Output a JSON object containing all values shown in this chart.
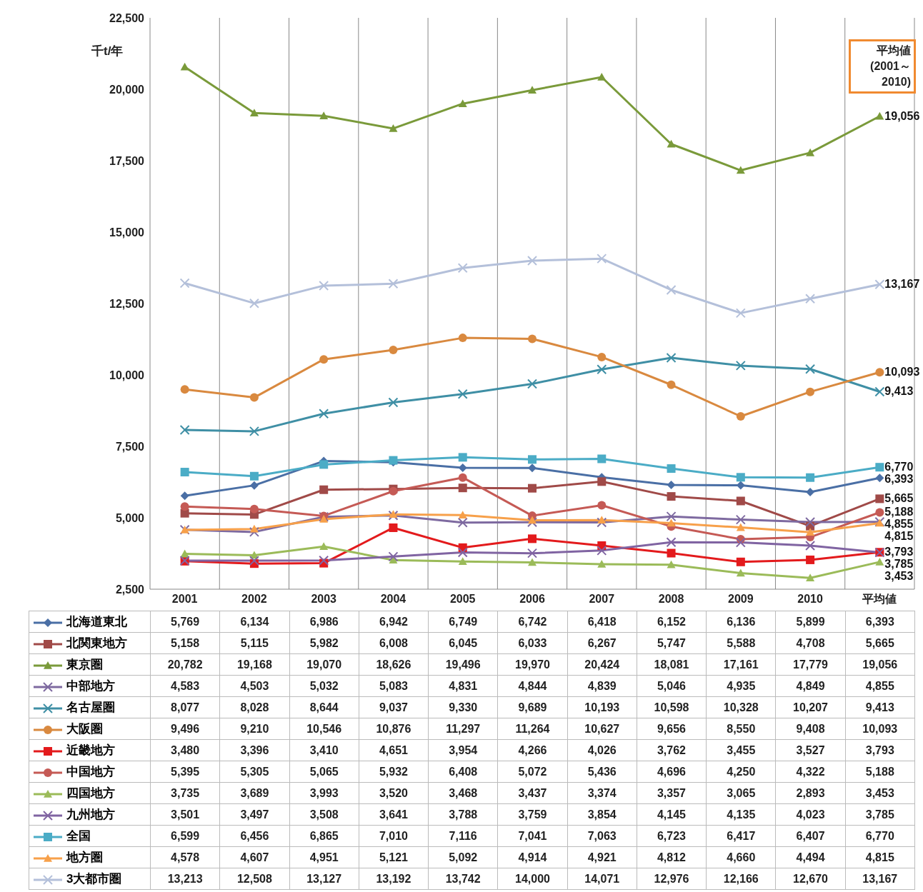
{
  "chart_data": {
    "type": "line",
    "ylabel": "千t/年",
    "categories": [
      "2001",
      "2002",
      "2003",
      "2004",
      "2005",
      "2006",
      "2007",
      "2008",
      "2009",
      "2010",
      "平均値"
    ],
    "ylim": [
      2500,
      22500
    ],
    "yticks": [
      {
        "value": 2500,
        "label": "2,500"
      },
      {
        "value": 5000,
        "label": "5,000"
      },
      {
        "value": 7500,
        "label": "7,500"
      },
      {
        "value": 10000,
        "label": "10,000"
      },
      {
        "value": 12500,
        "label": "12,500"
      },
      {
        "value": 15000,
        "label": "15,000"
      },
      {
        "value": 17500,
        "label": "17,500"
      },
      {
        "value": 20000,
        "label": "20,000"
      },
      {
        "value": 22500,
        "label": "22,500"
      }
    ],
    "grid": "x",
    "legend": "bottom",
    "annotations": [
      "平均値 (2001～2010)"
    ],
    "series": [
      {
        "name": "北海道東北",
        "color": "#4a6fa5",
        "marker": "diamond",
        "values": [
          5769,
          6134,
          6986,
          6942,
          6749,
          6742,
          6418,
          6152,
          6136,
          5899,
          6393
        ],
        "value_labels": [
          "5,769",
          "6,134",
          "6,986",
          "6,942",
          "6,749",
          "6,742",
          "6,418",
          "6,152",
          "6,136",
          "5,899",
          "6,393"
        ]
      },
      {
        "name": "北関東地方",
        "color": "#a04a48",
        "marker": "square",
        "values": [
          5158,
          5115,
          5982,
          6008,
          6045,
          6033,
          6267,
          5747,
          5588,
          4708,
          5665
        ],
        "value_labels": [
          "5,158",
          "5,115",
          "5,982",
          "6,008",
          "6,045",
          "6,033",
          "6,267",
          "5,747",
          "5,588",
          "4,708",
          "5,665"
        ]
      },
      {
        "name": "東京圏",
        "color": "#7a9a3a",
        "marker": "triangle",
        "values": [
          20782,
          19168,
          19070,
          18626,
          19496,
          19970,
          20424,
          18081,
          17161,
          17779,
          19056
        ],
        "value_labels": [
          "20,782",
          "19,168",
          "19,070",
          "18,626",
          "19,496",
          "19,970",
          "20,424",
          "18,081",
          "17,161",
          "17,779",
          "19,056"
        ]
      },
      {
        "name": "中部地方",
        "color": "#7e6aa0",
        "marker": "cross",
        "values": [
          4583,
          4503,
          5032,
          5083,
          4831,
          4844,
          4839,
          5046,
          4935,
          4849,
          4855
        ],
        "value_labels": [
          "4,583",
          "4,503",
          "5,032",
          "5,083",
          "4,831",
          "4,844",
          "4,839",
          "5,046",
          "4,935",
          "4,849",
          "4,855"
        ]
      },
      {
        "name": "名古屋圏",
        "color": "#3f8fa5",
        "marker": "cross",
        "values": [
          8077,
          8028,
          8644,
          9037,
          9330,
          9689,
          10193,
          10598,
          10328,
          10207,
          9413
        ],
        "value_labels": [
          "8,077",
          "8,028",
          "8,644",
          "9,037",
          "9,330",
          "9,689",
          "10,193",
          "10,598",
          "10,328",
          "10,207",
          "9,413"
        ]
      },
      {
        "name": "大阪圏",
        "color": "#d9893f",
        "marker": "circle",
        "values": [
          9496,
          9210,
          10546,
          10876,
          11297,
          11264,
          10627,
          9656,
          8550,
          9408,
          10093
        ],
        "value_labels": [
          "9,496",
          "9,210",
          "10,546",
          "10,876",
          "11,297",
          "11,264",
          "10,627",
          "9,656",
          "8,550",
          "9,408",
          "10,093"
        ]
      },
      {
        "name": "近畿地方",
        "color": "#e31a1c",
        "marker": "square",
        "values": [
          3480,
          3396,
          3410,
          4651,
          3954,
          4266,
          4026,
          3762,
          3455,
          3527,
          3793
        ],
        "value_labels": [
          "3,480",
          "3,396",
          "3,410",
          "4,651",
          "3,954",
          "4,266",
          "4,026",
          "3,762",
          "3,455",
          "3,527",
          "3,793"
        ]
      },
      {
        "name": "中国地方",
        "color": "#c55a55",
        "marker": "circle",
        "values": [
          5395,
          5305,
          5065,
          5932,
          6408,
          5072,
          5436,
          4696,
          4250,
          4322,
          5188
        ],
        "value_labels": [
          "5,395",
          "5,305",
          "5,065",
          "5,932",
          "6,408",
          "5,072",
          "5,436",
          "4,696",
          "4,250",
          "4,322",
          "5,188"
        ]
      },
      {
        "name": "四国地方",
        "color": "#9bbb59",
        "marker": "triangle",
        "values": [
          3735,
          3689,
          3993,
          3520,
          3468,
          3437,
          3374,
          3357,
          3065,
          2893,
          3453
        ],
        "value_labels": [
          "3,735",
          "3,689",
          "3,993",
          "3,520",
          "3,468",
          "3,437",
          "3,374",
          "3,357",
          "3,065",
          "2,893",
          "3,453"
        ]
      },
      {
        "name": "九州地方",
        "color": "#8064a2",
        "marker": "cross",
        "values": [
          3501,
          3497,
          3508,
          3641,
          3788,
          3759,
          3854,
          4145,
          4135,
          4023,
          3785
        ],
        "value_labels": [
          "3,501",
          "3,497",
          "3,508",
          "3,641",
          "3,788",
          "3,759",
          "3,854",
          "4,145",
          "4,135",
          "4,023",
          "3,785"
        ]
      },
      {
        "name": "全国",
        "color": "#4bacc6",
        "marker": "square",
        "values": [
          6599,
          6456,
          6865,
          7010,
          7116,
          7041,
          7063,
          6723,
          6417,
          6407,
          6770
        ],
        "value_labels": [
          "6,599",
          "6,456",
          "6,865",
          "7,010",
          "7,116",
          "7,041",
          "7,063",
          "6,723",
          "6,417",
          "6,407",
          "6,770"
        ]
      },
      {
        "name": "地方圏",
        "color": "#f7a04a",
        "marker": "triangle",
        "values": [
          4578,
          4607,
          4951,
          5121,
          5092,
          4914,
          4921,
          4812,
          4660,
          4494,
          4815
        ],
        "value_labels": [
          "4,578",
          "4,607",
          "4,951",
          "5,121",
          "5,092",
          "4,914",
          "4,921",
          "4,812",
          "4,660",
          "4,494",
          "4,815"
        ]
      },
      {
        "name": "3大都市圏",
        "color": "#b4c0da",
        "marker": "cross",
        "values": [
          13213,
          12508,
          13127,
          13192,
          13742,
          14000,
          14071,
          12976,
          12166,
          12670,
          13167
        ],
        "value_labels": [
          "13,213",
          "12,508",
          "13,127",
          "13,192",
          "13,742",
          "14,000",
          "14,071",
          "12,976",
          "12,166",
          "12,670",
          "13,167"
        ]
      }
    ]
  }
}
